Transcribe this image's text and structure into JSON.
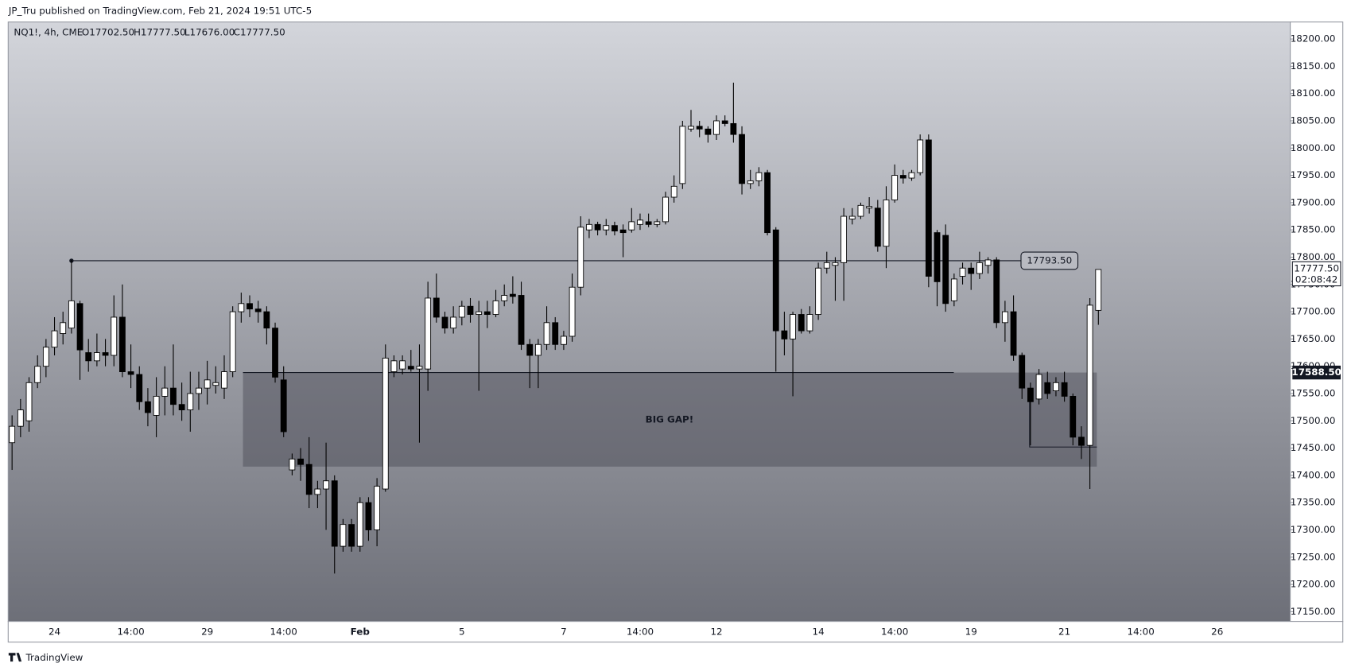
{
  "header": {
    "published": "JP_Tru published on TradingView.com, Feb 21, 2024 19:51 UTC-5",
    "brand": "TradingView"
  },
  "chart_data": {
    "type": "candlestick",
    "symbol": "NQ1!, 4h, CME",
    "ohlc_labels": [
      "O17702.50",
      "H17777.50",
      "L17676.00",
      "C17777.50"
    ],
    "ylim": [
      17133,
      18232
    ],
    "yticks": [
      {
        "value": 17150,
        "label": "17150.00"
      },
      {
        "value": 17200,
        "label": "17200.00"
      },
      {
        "value": 17250,
        "label": "17250.00"
      },
      {
        "value": 17300,
        "label": "17300.00"
      },
      {
        "value": 17350,
        "label": "17350.00"
      },
      {
        "value": 17400,
        "label": "17400.00"
      },
      {
        "value": 17450,
        "label": "17450.00"
      },
      {
        "value": 17500,
        "label": "17500.00"
      },
      {
        "value": 17550,
        "label": "17550.00"
      },
      {
        "value": 17600,
        "label": "17600.00"
      },
      {
        "value": 17650,
        "label": "17650.00"
      },
      {
        "value": 17700,
        "label": "17700.00"
      },
      {
        "value": 17750,
        "label": "17750.00"
      },
      {
        "value": 17800,
        "label": "17800.00"
      },
      {
        "value": 17850,
        "label": "17850.00"
      },
      {
        "value": 17900,
        "label": "17900.00"
      },
      {
        "value": 17950,
        "label": "17950.00"
      },
      {
        "value": 18000,
        "label": "18000.00"
      },
      {
        "value": 18050,
        "label": "18050.00"
      },
      {
        "value": 18100,
        "label": "18100.00"
      },
      {
        "value": 18150,
        "label": "18150.00"
      },
      {
        "value": 18200,
        "label": "18200.00"
      }
    ],
    "categories": [
      null,
      null,
      null,
      null,
      null,
      "24",
      null,
      null,
      null,
      null,
      null,
      null,
      null,
      null,
      "14:00",
      null,
      null,
      null,
      null,
      null,
      null,
      null,
      null,
      "29",
      null,
      null,
      null,
      null,
      null,
      null,
      null,
      null,
      "14:00",
      null,
      null,
      null,
      null,
      null,
      null,
      null,
      null,
      "Feb",
      null,
      null,
      null,
      null,
      null,
      null,
      null,
      null,
      null,
      null,
      null,
      "5",
      null,
      null,
      null,
      null,
      null,
      null,
      null,
      null,
      null,
      null,
      null,
      "7",
      null,
      null,
      null,
      null,
      null,
      null,
      null,
      null,
      "14:00",
      null,
      null,
      null,
      null,
      null,
      null,
      null,
      null,
      "12",
      null,
      null,
      null,
      null,
      null,
      null,
      null,
      null,
      null,
      null,
      null,
      "14",
      null,
      null,
      null,
      null,
      null,
      null,
      null,
      null,
      "14:00",
      null,
      null,
      null,
      null,
      null,
      null,
      null,
      null,
      "19",
      null,
      null,
      null,
      null,
      null,
      null,
      null,
      null,
      null,
      null,
      "21",
      null,
      null,
      null,
      null,
      null,
      null,
      null,
      null,
      "14:00",
      null,
      null,
      null,
      null,
      null,
      null,
      null,
      null,
      "26"
    ],
    "candles": [
      [
        17460,
        17510,
        17410,
        17490
      ],
      [
        17490,
        17540,
        17470,
        17520
      ],
      [
        17500,
        17580,
        17480,
        17570
      ],
      [
        17570,
        17620,
        17560,
        17600
      ],
      [
        17600,
        17650,
        17580,
        17635
      ],
      [
        17635,
        17690,
        17620,
        17665
      ],
      [
        17660,
        17700,
        17640,
        17680
      ],
      [
        17670,
        17795,
        17660,
        17720
      ],
      [
        17715,
        17720,
        17575,
        17630
      ],
      [
        17625,
        17650,
        17590,
        17610
      ],
      [
        17610,
        17660,
        17600,
        17625
      ],
      [
        17625,
        17650,
        17600,
        17620
      ],
      [
        17620,
        17730,
        17600,
        17690
      ],
      [
        17690,
        17750,
        17580,
        17590
      ],
      [
        17590,
        17640,
        17560,
        17585
      ],
      [
        17585,
        17600,
        17520,
        17535
      ],
      [
        17535,
        17560,
        17490,
        17515
      ],
      [
        17510,
        17580,
        17470,
        17545
      ],
      [
        17545,
        17600,
        17510,
        17560
      ],
      [
        17560,
        17640,
        17510,
        17530
      ],
      [
        17530,
        17570,
        17500,
        17520
      ],
      [
        17520,
        17590,
        17480,
        17550
      ],
      [
        17550,
        17590,
        17520,
        17560
      ],
      [
        17560,
        17610,
        17530,
        17575
      ],
      [
        17565,
        17600,
        17550,
        17570
      ],
      [
        17560,
        17620,
        17540,
        17590
      ],
      [
        17590,
        17710,
        17580,
        17700
      ],
      [
        17700,
        17735,
        17680,
        17715
      ],
      [
        17715,
        17730,
        17690,
        17705
      ],
      [
        17705,
        17720,
        17680,
        17700
      ],
      [
        17700,
        17710,
        17640,
        17670
      ],
      [
        17670,
        17680,
        17570,
        17580
      ],
      [
        17575,
        17600,
        17470,
        17480
      ],
      [
        17410,
        17440,
        17400,
        17430
      ],
      [
        17430,
        17450,
        17390,
        17420
      ],
      [
        17420,
        17470,
        17340,
        17365
      ],
      [
        17365,
        17390,
        17340,
        17375
      ],
      [
        17375,
        17460,
        17300,
        17390
      ],
      [
        17390,
        17400,
        17220,
        17270
      ],
      [
        17270,
        17320,
        17260,
        17310
      ],
      [
        17310,
        17320,
        17260,
        17270
      ],
      [
        17270,
        17360,
        17260,
        17350
      ],
      [
        17350,
        17360,
        17280,
        17300
      ],
      [
        17300,
        17395,
        17270,
        17380
      ],
      [
        17375,
        17640,
        17370,
        17615
      ],
      [
        17590,
        17620,
        17580,
        17610
      ],
      [
        17595,
        17620,
        17585,
        17610
      ],
      [
        17600,
        17630,
        17590,
        17595
      ],
      [
        17595,
        17640,
        17460,
        17600
      ],
      [
        17595,
        17755,
        17555,
        17725
      ],
      [
        17725,
        17770,
        17680,
        17690
      ],
      [
        17690,
        17700,
        17660,
        17670
      ],
      [
        17670,
        17710,
        17660,
        17690
      ],
      [
        17690,
        17720,
        17675,
        17710
      ],
      [
        17710,
        17725,
        17680,
        17695
      ],
      [
        17695,
        17720,
        17555,
        17700
      ],
      [
        17700,
        17720,
        17670,
        17695
      ],
      [
        17695,
        17740,
        17690,
        17720
      ],
      [
        17720,
        17750,
        17710,
        17730
      ],
      [
        17732,
        17765,
        17715,
        17728
      ],
      [
        17730,
        17755,
        17630,
        17640
      ],
      [
        17640,
        17650,
        17560,
        17620
      ],
      [
        17620,
        17650,
        17560,
        17640
      ],
      [
        17640,
        17710,
        17630,
        17680
      ],
      [
        17680,
        17690,
        17630,
        17640
      ],
      [
        17640,
        17665,
        17630,
        17655
      ],
      [
        17655,
        17770,
        17645,
        17745
      ],
      [
        17745,
        17875,
        17730,
        17855
      ],
      [
        17850,
        17870,
        17835,
        17860
      ],
      [
        17860,
        17865,
        17840,
        17850
      ],
      [
        17850,
        17870,
        17840,
        17858
      ],
      [
        17858,
        17865,
        17840,
        17848
      ],
      [
        17850,
        17860,
        17800,
        17845
      ],
      [
        17850,
        17890,
        17845,
        17865
      ],
      [
        17860,
        17880,
        17850,
        17868
      ],
      [
        17865,
        17880,
        17855,
        17860
      ],
      [
        17860,
        17870,
        17855,
        17865
      ],
      [
        17865,
        17920,
        17860,
        17910
      ],
      [
        17910,
        17950,
        17900,
        17930
      ],
      [
        17935,
        18050,
        17925,
        18040
      ],
      [
        18035,
        18070,
        18030,
        18040
      ],
      [
        18040,
        18050,
        18020,
        18035
      ],
      [
        18035,
        18040,
        18010,
        18025
      ],
      [
        18025,
        18060,
        18015,
        18050
      ],
      [
        18050,
        18060,
        18040,
        18045
      ],
      [
        18045,
        18120,
        18010,
        18025
      ],
      [
        18025,
        18040,
        17915,
        17935
      ],
      [
        17935,
        17960,
        17925,
        17940
      ],
      [
        17940,
        17965,
        17930,
        17955
      ],
      [
        17955,
        17960,
        17840,
        17845
      ],
      [
        17850,
        17855,
        17590,
        17665
      ],
      [
        17665,
        17700,
        17620,
        17650
      ],
      [
        17650,
        17700,
        17545,
        17695
      ],
      [
        17695,
        17705,
        17660,
        17665
      ],
      [
        17665,
        17710,
        17660,
        17695
      ],
      [
        17695,
        17790,
        17685,
        17780
      ],
      [
        17780,
        17810,
        17770,
        17790
      ],
      [
        17785,
        17800,
        17720,
        17790
      ],
      [
        17790,
        17890,
        17720,
        17875
      ],
      [
        17870,
        17890,
        17860,
        17875
      ],
      [
        17875,
        17900,
        17870,
        17895
      ],
      [
        17890,
        17910,
        17880,
        17893
      ],
      [
        17890,
        17905,
        17810,
        17820
      ],
      [
        17820,
        17930,
        17780,
        17905
      ],
      [
        17905,
        17970,
        17900,
        17950
      ],
      [
        17950,
        17960,
        17935,
        17945
      ],
      [
        17945,
        17960,
        17940,
        17955
      ],
      [
        17955,
        18025,
        17950,
        18015
      ],
      [
        18015,
        18025,
        17745,
        17765
      ],
      [
        17845,
        17850,
        17710,
        17755
      ],
      [
        17840,
        17860,
        17700,
        17715
      ],
      [
        17720,
        17770,
        17710,
        17760
      ],
      [
        17765,
        17790,
        17750,
        17780
      ],
      [
        17780,
        17790,
        17740,
        17770
      ],
      [
        17770,
        17810,
        17760,
        17790
      ],
      [
        17785,
        17800,
        17770,
        17795
      ],
      [
        17795,
        17800,
        17670,
        17680
      ],
      [
        17680,
        17720,
        17645,
        17700
      ],
      [
        17700,
        17730,
        17610,
        17620
      ],
      [
        17620,
        17625,
        17540,
        17560
      ],
      [
        17560,
        17570,
        17455,
        17535
      ],
      [
        17540,
        17595,
        17530,
        17585
      ],
      [
        17570,
        17590,
        17540,
        17550
      ],
      [
        17555,
        17580,
        17545,
        17570
      ],
      [
        17570,
        17590,
        17535,
        17545
      ],
      [
        17545,
        17550,
        17455,
        17470
      ],
      [
        17470,
        17490,
        17430,
        17455
      ],
      [
        17455,
        17725,
        17375,
        17712
      ],
      [
        17702.5,
        17777.5,
        17676,
        17777.5
      ],
      null,
      null,
      null,
      null,
      null,
      null,
      null,
      null,
      null,
      null,
      null,
      null,
      null,
      null
    ],
    "level_line": {
      "value": 17793.5,
      "label": "17793.50"
    },
    "gap_zone": {
      "top": 17588.5,
      "bottom": 17416,
      "label": "BIG GAP!"
    },
    "low_line": 17452,
    "price_label": {
      "value": 17588.5,
      "label": "17588.50"
    },
    "last_price": {
      "value": 17777.5,
      "label": "17777.50",
      "countdown": "02:08:42"
    }
  }
}
